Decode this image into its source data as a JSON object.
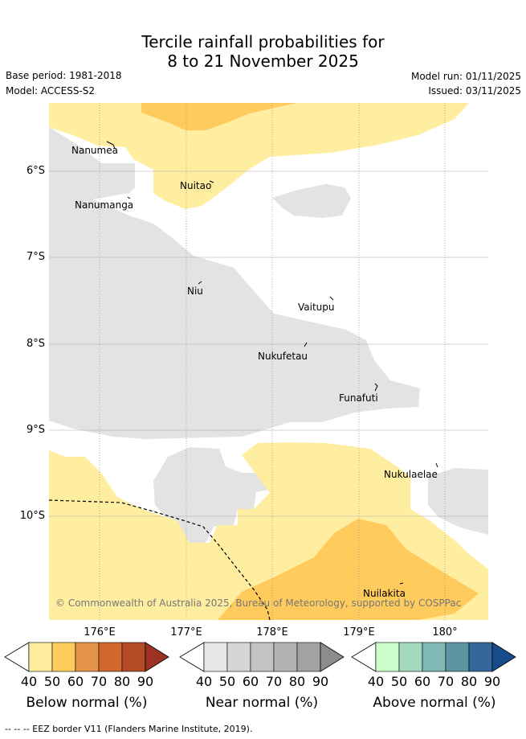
{
  "title": {
    "line1": "Tercile rainfall probabilities for",
    "line2": "8 to 21 November 2025"
  },
  "meta": {
    "base_period": "Base period: 1981-2018",
    "model": "Model: ACCESS-S2",
    "model_run": "Model run: 01/11/2025",
    "issued": "Issued: 03/11/2025"
  },
  "map": {
    "lat_labels": [
      "6°S",
      "7°S",
      "8°S",
      "9°S",
      "10°S"
    ],
    "lon_labels": [
      "176°E",
      "177°E",
      "178°E",
      "179°E",
      "180°"
    ],
    "places": [
      "Nanumea",
      "Nanumanga",
      "Nuitao",
      "Niu",
      "Vaitupu",
      "Nukufetau",
      "Funafuti",
      "Nukulaelae",
      "Nuilakita"
    ],
    "copyright": "© Commonwealth of Australia 2025, Bureau of Meteorology, supported by COSPPac"
  },
  "colorbars": {
    "ticks": [
      "40",
      "50",
      "60",
      "70",
      "80",
      "90"
    ],
    "below": {
      "title": "Below normal (%)",
      "colors": [
        "#ffeda0",
        "#fecb5c",
        "#e5944a",
        "#d2672f",
        "#b34c27",
        "#9c3322"
      ]
    },
    "near": {
      "title": "Near normal (%)",
      "colors": [
        "#e6e6e6",
        "#d5d5d5",
        "#c3c3c3",
        "#b3b3b3",
        "#a2a2a2",
        "#8c8c8c"
      ]
    },
    "above": {
      "title": "Above normal (%)",
      "colors": [
        "#ccffcc",
        "#a3d9bd",
        "#80b8b3",
        "#5c94a3",
        "#336699",
        "#174b8a"
      ]
    }
  },
  "footer": "--  --  -- EEZ border V11 (Flanders Marine Institute, 2019)."
}
